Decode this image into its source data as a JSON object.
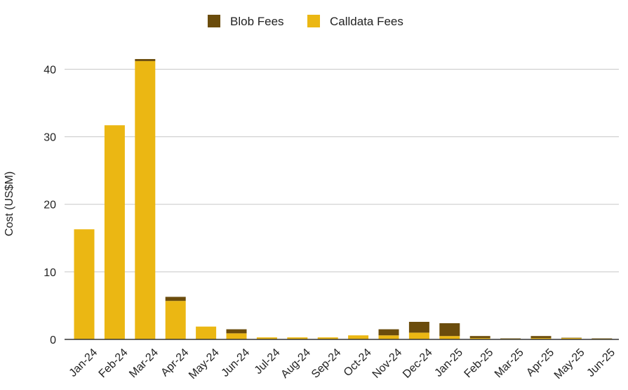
{
  "chart_data": {
    "type": "bar",
    "stacked": true,
    "title": "",
    "xlabel": "",
    "ylabel": "Cost (US$M)",
    "ylim": [
      0,
      44
    ],
    "yticks": [
      0,
      10,
      20,
      30,
      40
    ],
    "grid": true,
    "legend_position": "top",
    "categories": [
      "Jan-24",
      "Feb-24",
      "Mar-24",
      "Apr-24",
      "May-24",
      "Jun-24",
      "Jul-24",
      "Aug-24",
      "Sep-24",
      "Oct-24",
      "Nov-24",
      "Dec-24",
      "Jan-25",
      "Feb-25",
      "Mar-25",
      "Apr-25",
      "May-25",
      "Jun-25"
    ],
    "series": [
      {
        "name": "Blob Fees",
        "color": "#6b4c0c",
        "values": [
          0,
          0,
          0.3,
          0.6,
          0,
          0.6,
          0,
          0,
          0,
          0,
          0.9,
          1.6,
          1.9,
          0.3,
          0.05,
          0.3,
          0.05,
          0.05
        ]
      },
      {
        "name": "Calldata Fees",
        "color": "#ebb713",
        "values": [
          16.3,
          31.7,
          41.2,
          5.7,
          1.9,
          0.9,
          0.3,
          0.3,
          0.3,
          0.6,
          0.6,
          1.0,
          0.5,
          0.2,
          0.1,
          0.2,
          0.2,
          0.1
        ]
      }
    ],
    "stack_order": [
      "Calldata Fees",
      "Blob Fees"
    ]
  }
}
